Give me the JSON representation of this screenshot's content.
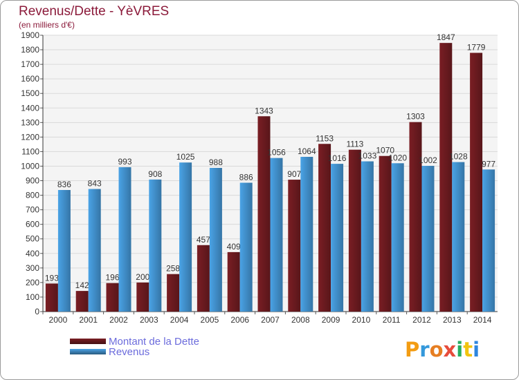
{
  "header": {
    "title": "Revenus/Dette - YèVRES",
    "subtitle": "(en milliers d'€)"
  },
  "chart_data": {
    "type": "bar",
    "categories": [
      "2000",
      "2001",
      "2002",
      "2003",
      "2004",
      "2005",
      "2006",
      "2007",
      "2008",
      "2009",
      "2010",
      "2011",
      "2012",
      "2013",
      "2014"
    ],
    "series": [
      {
        "name": "Montant de la Dette",
        "color": "#7a1e24",
        "values": [
          193,
          142,
          196,
          200,
          258,
          457,
          409,
          1343,
          907,
          1153,
          1113,
          1070,
          1303,
          1847,
          1779
        ]
      },
      {
        "name": "Revenus",
        "color": "#4aa3e6",
        "values": [
          836,
          843,
          993,
          908,
          1025,
          988,
          886,
          1056,
          1064,
          1016,
          1033,
          1020,
          1002,
          1028,
          977
        ]
      }
    ],
    "y_ticks": [
      0,
      100,
      200,
      300,
      400,
      500,
      600,
      700,
      800,
      900,
      1000,
      1100,
      1200,
      1300,
      1400,
      1500,
      1600,
      1700,
      1800,
      1900
    ],
    "ylim": [
      0,
      1900
    ],
    "grid": true,
    "legend_position": "bottom-left"
  },
  "legend": [
    {
      "label": "Montant de la Dette",
      "color": "#7a1e24"
    },
    {
      "label": "Revenus",
      "color": "#4aa3e6"
    }
  ],
  "logo": {
    "letters": [
      "P",
      "r",
      "o",
      "x",
      "i",
      "t",
      "i"
    ],
    "colors": [
      "#f39c12",
      "#3498db",
      "#e67e22",
      "#e74c3c",
      "#27ae60",
      "#f1c40f",
      "#2e86de"
    ]
  }
}
